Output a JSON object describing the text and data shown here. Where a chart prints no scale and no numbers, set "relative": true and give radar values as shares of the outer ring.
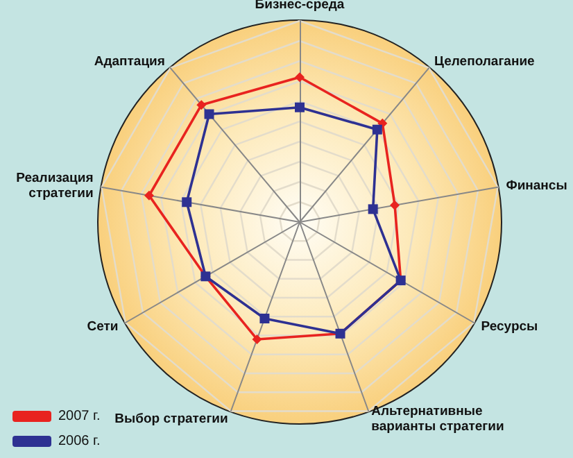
{
  "chart_data": {
    "type": "radar",
    "relative": true,
    "categories": [
      "Бизнес-среда",
      "Целеполагание",
      "Финансы",
      "Ресурсы",
      "Альтернативные варианты стратегии",
      "Выбор стратегии",
      "Сети",
      "Реализация стратегии",
      "Адаптация"
    ],
    "series": [
      {
        "name": "2007 г.",
        "color": "#e8231f",
        "marker": "diamond",
        "values": [
          0.72,
          0.64,
          0.48,
          0.58,
          0.59,
          0.62,
          0.54,
          0.76,
          0.76
        ]
      },
      {
        "name": "2006 г.",
        "color": "#2e3192",
        "marker": "square",
        "values": [
          0.57,
          0.6,
          0.37,
          0.58,
          0.59,
          0.51,
          0.54,
          0.57,
          0.7
        ]
      }
    ],
    "legend": "bottom left",
    "grid": true
  }
}
